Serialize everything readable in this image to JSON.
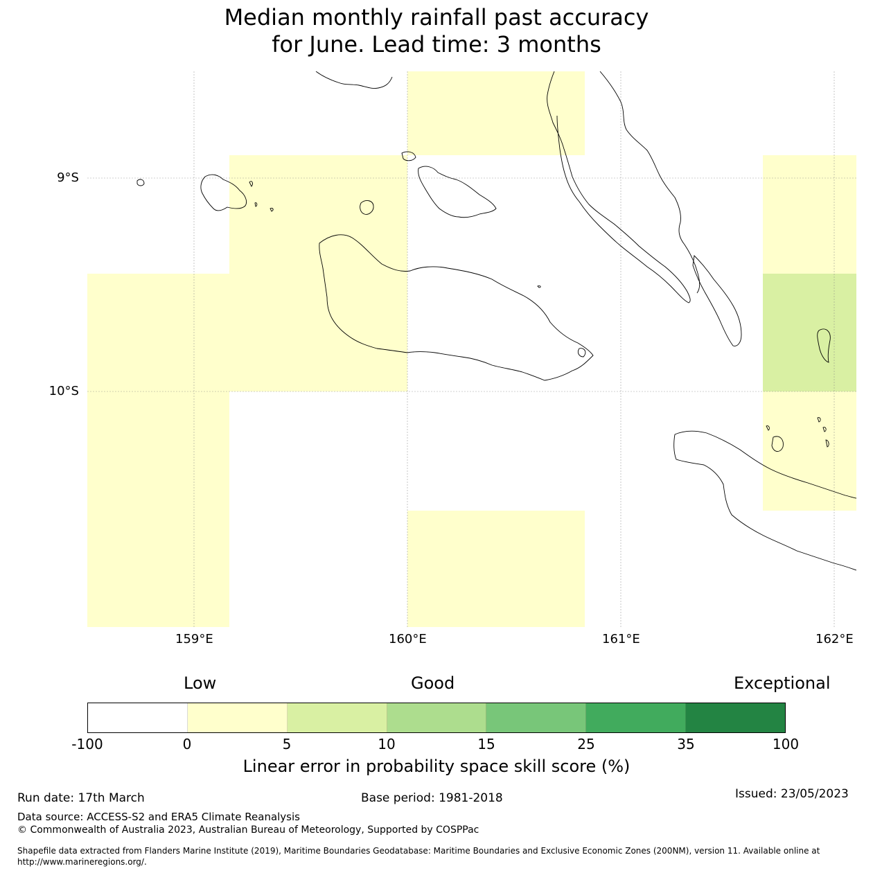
{
  "title_line1": "Median monthly rainfall past accuracy",
  "title_line2": "for June. Lead time: 3 months",
  "map": {
    "lon_labels": [
      "159°E",
      "160°E",
      "161°E",
      "162°E"
    ],
    "lat_labels": [
      "9°S",
      "10°S"
    ],
    "colors": {
      "low": "#ffffcc",
      "good": "#d9f0a3",
      "land_outline": "#000000",
      "grid": "#888888"
    }
  },
  "colorbar": {
    "words": [
      "Low",
      "Good",
      "Exceptional"
    ],
    "ticks": [
      "-100",
      "0",
      "5",
      "10",
      "15",
      "25",
      "35",
      "100"
    ],
    "colors": [
      "#ffffff",
      "#ffffcc",
      "#d9f0a3",
      "#addd8e",
      "#78c679",
      "#41ab5d",
      "#238443"
    ],
    "label": "Linear error in probability space skill score (%)"
  },
  "footer": {
    "run_date": "Run date: 17th March",
    "base_period": "Base period: 1981-2018",
    "issued": "Issued: 23/05/2023",
    "data_source": "Data source: ACCESS-S2 and ERA5 Climate Reanalysis",
    "copyright": "© Commonwealth of Australia 2023, Australian Bureau of Meteorology, Supported by COSPPac",
    "shapefile_line1": "Shapefile data extracted from Flanders Marine Institute (2019), Maritime Boundaries Geodatabase: Maritime Boundaries and Exclusive Economic Zones (200NM), version 11. Available online at",
    "shapefile_line2": "http://www.marineregions.org/."
  }
}
